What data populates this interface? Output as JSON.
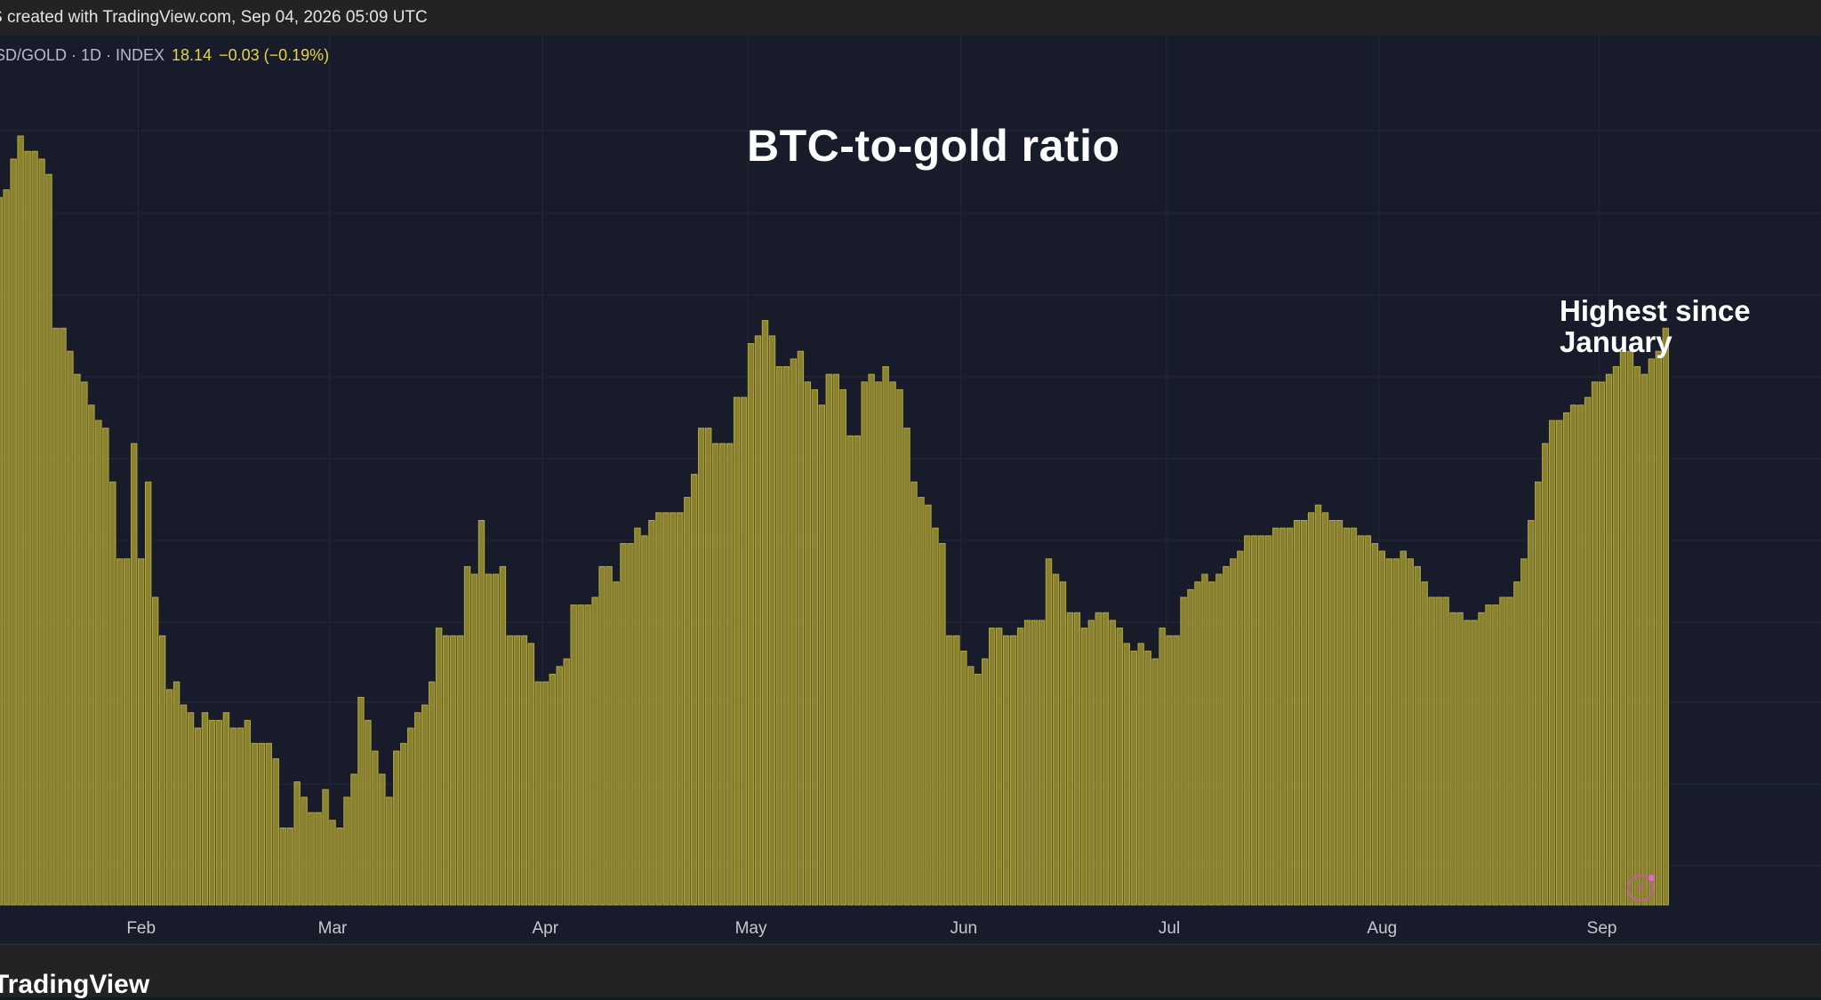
{
  "header": {
    "created_text": "S created with TradingView.com, Sep 04, 2026 05:09 UTC"
  },
  "legend": {
    "symbol": "SD/GOLD · 1D · INDEX",
    "value": "18.14",
    "change": "−0.03 (−0.19%)"
  },
  "footer": {
    "brand": "TradingView"
  },
  "icons": {
    "bolt": "lightning-bolt-icon"
  },
  "colors": {
    "bar_fill": "#8a8230",
    "bar_stroke": "#b1a83c",
    "background": "#171b2a",
    "grid": "#232838",
    "value_text": "#e8d44a"
  },
  "chart_data": {
    "type": "bar",
    "title": "BTC-to-gold ratio",
    "annotation": [
      "Highest since",
      "January"
    ],
    "xlabel": "",
    "ylabel": "",
    "grid": true,
    "x_axis_months": [
      {
        "label": "Feb",
        "index": 20
      },
      {
        "label": "Mar",
        "index": 47
      },
      {
        "label": "Apr",
        "index": 77
      },
      {
        "label": "May",
        "index": 106
      },
      {
        "label": "Jun",
        "index": 136
      },
      {
        "label": "Jul",
        "index": 165
      },
      {
        "label": "Aug",
        "index": 195
      },
      {
        "label": "Sep",
        "index": 226
      }
    ],
    "ylim": [
      0,
      100
    ],
    "values": [
      92,
      93,
      97,
      100,
      98,
      98,
      97,
      95,
      75,
      75,
      72,
      69,
      68,
      65,
      63,
      62,
      55,
      45,
      45,
      60,
      45,
      55,
      40,
      35,
      28,
      29,
      26,
      25,
      23,
      25,
      24,
      24,
      25,
      23,
      23,
      24,
      21,
      21,
      21,
      19,
      10,
      10,
      16,
      14,
      12,
      12,
      15,
      11,
      10,
      14,
      17,
      27,
      24,
      20,
      17,
      14,
      20,
      21,
      23,
      25,
      26,
      29,
      36,
      35,
      35,
      35,
      44,
      43,
      50,
      43,
      43,
      44,
      35,
      35,
      35,
      34,
      29,
      29,
      30,
      31,
      32,
      39,
      39,
      39,
      40,
      44,
      44,
      42,
      47,
      47,
      49,
      48,
      50,
      51,
      51,
      51,
      51,
      53,
      56,
      62,
      62,
      60,
      60,
      60,
      66,
      66,
      73,
      74,
      76,
      74,
      70,
      70,
      71,
      72,
      68,
      67,
      65,
      69,
      69,
      67,
      61,
      61,
      68,
      69,
      68,
      70,
      68,
      67,
      62,
      55,
      53,
      52,
      49,
      47,
      35,
      35,
      33,
      31,
      30,
      32,
      36,
      36,
      35,
      35,
      36,
      37,
      37,
      37,
      45,
      43,
      42,
      38,
      38,
      36,
      37,
      38,
      38,
      37,
      36,
      34,
      33,
      34,
      33,
      32,
      36,
      35,
      35,
      40,
      41,
      42,
      43,
      42,
      43,
      44,
      45,
      46,
      48,
      48,
      48,
      48,
      49,
      49,
      49,
      50,
      50,
      51,
      52,
      51,
      50,
      50,
      49,
      49,
      48,
      48,
      47,
      46,
      45,
      45,
      46,
      45,
      44,
      42,
      40,
      40,
      40,
      38,
      38,
      37,
      37,
      38,
      39,
      39,
      40,
      40,
      42,
      45,
      50,
      55,
      60,
      63,
      63,
      64,
      65,
      65,
      66,
      68,
      68,
      69,
      70,
      72,
      72,
      70,
      69,
      71,
      72,
      75
    ]
  }
}
